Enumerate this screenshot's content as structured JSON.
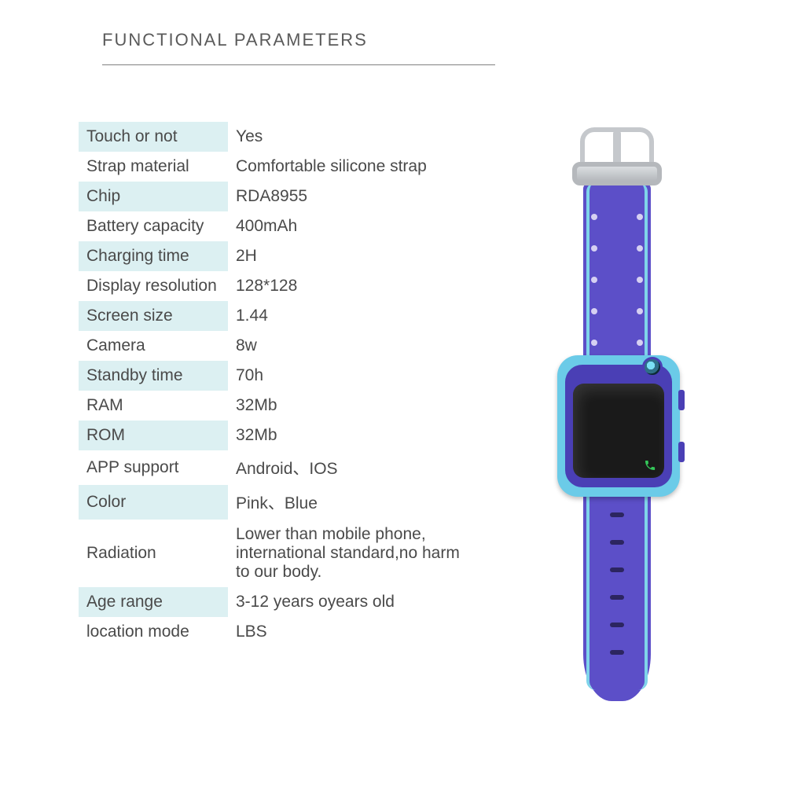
{
  "header": {
    "title": "FUNCTIONAL PARAMETERS"
  },
  "specs": [
    {
      "label": "Touch or not",
      "value": "Yes",
      "shaded": true
    },
    {
      "label": "Strap material",
      "value": "Comfortable silicone strap",
      "shaded": false
    },
    {
      "label": "Chip",
      "value": "RDA8955",
      "shaded": true
    },
    {
      "label": "Battery capacity",
      "value": "400mAh",
      "shaded": false
    },
    {
      "label": "Charging time",
      "value": "2H",
      "shaded": true
    },
    {
      "label": "Display resolution",
      "value": "128*128",
      "shaded": false
    },
    {
      "label": "Screen size",
      "value": "1.44",
      "shaded": true
    },
    {
      "label": "Camera",
      "value": "8w",
      "shaded": false
    },
    {
      "label": "Standby time",
      "value": "70h",
      "shaded": true
    },
    {
      "label": "RAM",
      "value": "32Mb",
      "shaded": false
    },
    {
      "label": "ROM",
      "value": "32Mb",
      "shaded": true
    },
    {
      "label": "APP support",
      "value": "Android、IOS",
      "shaded": false
    },
    {
      "label": "Color",
      "value": "Pink、Blue",
      "shaded": true
    },
    {
      "label": "Radiation",
      "value": "Lower than mobile phone, international standard,no harm to our body.",
      "shaded": false
    },
    {
      "label": "Age range",
      "value": "3-12 years oyears old",
      "shaded": true
    },
    {
      "label": "location mode",
      "value": "LBS",
      "shaded": false
    }
  ],
  "style": {
    "shade_color": "#dcf0f2",
    "title_color": "#5a5a5a",
    "text_color": "#4a4a4a",
    "font_size_label": 21,
    "font_size_title": 22,
    "underline_color": "#808080",
    "underline_width": 500
  },
  "watch": {
    "strap_color": "#5c4fc8",
    "accent_color": "#7fd4ea",
    "case_color": "#6bcbe8",
    "inner_color": "#4a3fb5",
    "screen_color": "#1a1a1a",
    "buckle_color": "#b5b8bc"
  }
}
